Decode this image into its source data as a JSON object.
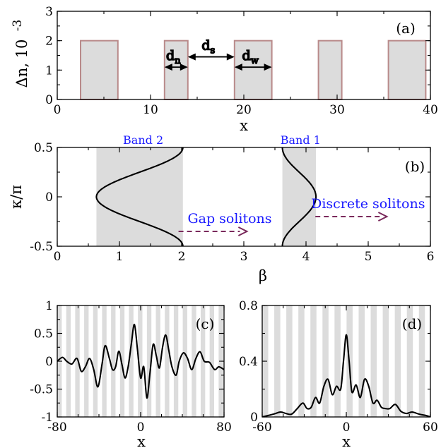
{
  "chart_data": [
    {
      "panel": "(a)",
      "type": "area",
      "xlabel": "x",
      "ylabel": "Δn, 10",
      "ylabel_exponent": "-3",
      "xlim": [
        0,
        40
      ],
      "ylim": [
        0,
        3
      ],
      "xticks": [
        0,
        10,
        20,
        30,
        40
      ],
      "yticks": [
        0,
        1,
        2,
        3
      ],
      "waveguides": [
        {
          "x0": 2.5,
          "x1": 6.5,
          "height": 2
        },
        {
          "x0": 11.5,
          "x1": 14,
          "height": 2
        },
        {
          "x0": 19,
          "x1": 23,
          "height": 2
        },
        {
          "x0": 28,
          "x1": 30.5,
          "height": 2
        },
        {
          "x0": 35.5,
          "x1": 39.5,
          "height": 2
        }
      ],
      "annotations": [
        {
          "label": "d",
          "sub": "n",
          "from": 11.5,
          "to": 14,
          "y": 1.1
        },
        {
          "label": "d",
          "sub": "s",
          "from": 14,
          "to": 19,
          "y": 1.45
        },
        {
          "label": "d",
          "sub": "w",
          "from": 19,
          "to": 23,
          "y": 1.1
        }
      ]
    },
    {
      "panel": "(b)",
      "type": "line",
      "xlabel": "β",
      "ylabel": "κ/π",
      "xlim": [
        0,
        6
      ],
      "ylim": [
        -0.5,
        0.5
      ],
      "xticks": [
        0,
        1,
        2,
        3,
        4,
        5,
        6
      ],
      "yticks": [
        -0.5,
        0,
        0.5
      ],
      "ytick_labels": [
        "-0.5",
        "0",
        "0.5"
      ],
      "bands": [
        {
          "name": "Band 2",
          "beta_min": 0.63,
          "beta_max": 2.02
        },
        {
          "name": "Band 1",
          "beta_min": 3.62,
          "beta_max": 4.16
        }
      ],
      "arrows": [
        {
          "label": "Gap solitons",
          "x_from": 1.95,
          "x_to": 3.05,
          "y": -0.35
        },
        {
          "label": "Discrete solitons",
          "x_from": 4.15,
          "x_to": 5.3,
          "y": -0.2
        }
      ]
    },
    {
      "panel": "(c)",
      "type": "line",
      "xlabel": "x",
      "xlim": [
        -80,
        80
      ],
      "ylim": [
        -1,
        1
      ],
      "xticks": [
        -80,
        0,
        80
      ],
      "yticks": [
        -1,
        -0.5,
        0,
        0.5,
        1
      ],
      "ytick_labels": [
        "-1",
        "-0.5",
        "0",
        "0.5",
        "1"
      ],
      "series": [
        {
          "x": [
            -80,
            -75,
            -71,
            -66,
            -61,
            -57,
            -53,
            -49,
            -45,
            -41,
            -37,
            -34,
            -30,
            -27,
            -24,
            -21,
            -18,
            -15,
            -12,
            -9,
            -6,
            -3,
            0,
            3,
            6,
            9,
            12,
            15,
            18,
            21,
            24,
            27,
            30,
            34,
            37,
            41,
            45,
            49,
            53,
            57,
            61,
            66,
            71,
            75,
            80
          ],
          "y": [
            0.0,
            0.07,
            0.0,
            -0.05,
            0.05,
            -0.18,
            -0.1,
            0.05,
            -0.15,
            -0.46,
            -0.05,
            0.28,
            0.05,
            -0.15,
            -0.1,
            0.18,
            -0.05,
            -0.3,
            -0.1,
            0.3,
            0.66,
            0.2,
            -0.3,
            -0.1,
            -0.66,
            -0.2,
            0.3,
            0.1,
            -0.12,
            0.25,
            0.47,
            0.2,
            -0.1,
            -0.25,
            0.0,
            0.15,
            0.05,
            -0.15,
            0.05,
            0.17,
            0.0,
            -0.02,
            -0.15,
            -0.1,
            -0.15
          ]
        }
      ]
    },
    {
      "panel": "(d)",
      "type": "line",
      "xlabel": "x",
      "xlim": [
        -60,
        60
      ],
      "ylim": [
        0,
        0.8
      ],
      "xticks": [
        -60,
        0,
        60
      ],
      "yticks": [
        0,
        0.4,
        0.8
      ],
      "series": [
        {
          "x": [
            -60,
            -52,
            -47,
            -43,
            -39,
            -35,
            -31,
            -28,
            -25,
            -22,
            -19,
            -16,
            -13,
            -10,
            -7,
            -4,
            -2,
            0,
            2,
            4,
            7,
            10,
            13,
            16,
            19,
            22,
            25,
            28,
            31,
            35,
            39,
            43,
            47,
            52,
            57,
            60
          ],
          "y": [
            0.0,
            0.02,
            0.035,
            0.025,
            0.02,
            0.06,
            0.1,
            0.06,
            0.07,
            0.14,
            0.1,
            0.22,
            0.27,
            0.16,
            0.22,
            0.2,
            0.4,
            0.59,
            0.4,
            0.18,
            0.23,
            0.14,
            0.27,
            0.22,
            0.1,
            0.12,
            0.07,
            0.06,
            0.06,
            0.09,
            0.04,
            0.025,
            0.035,
            0.02,
            0.01,
            0.0
          ]
        }
      ]
    }
  ]
}
